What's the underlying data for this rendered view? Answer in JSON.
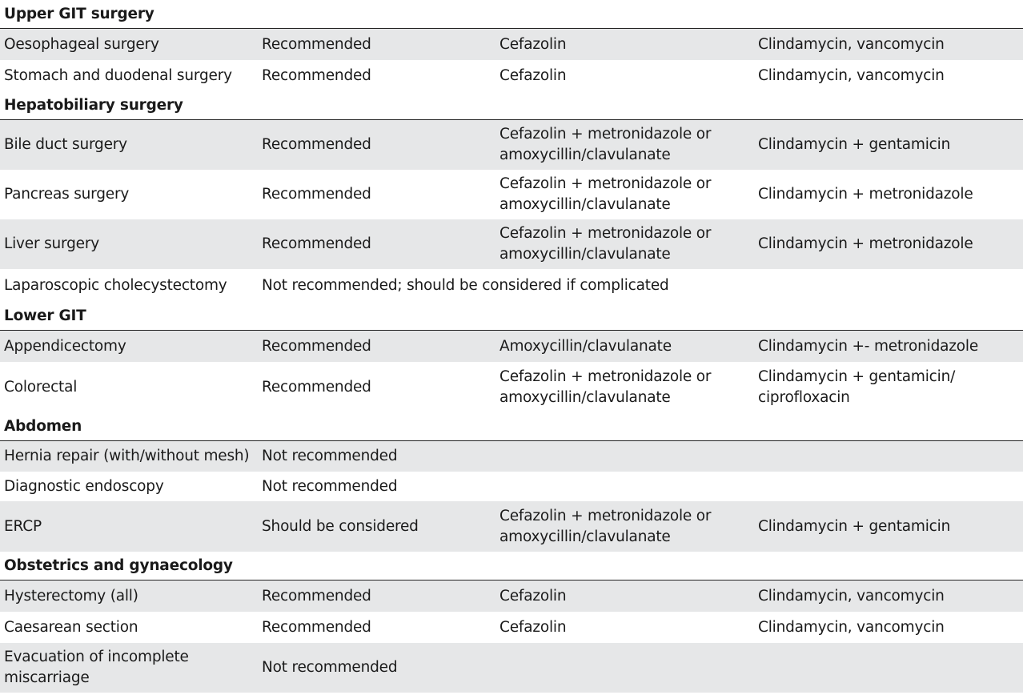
{
  "sections": [
    {
      "title": "Upper GIT surgery",
      "rows": [
        {
          "procedure": "Oesophageal surgery",
          "recommendation": "Recommended",
          "antibiotic": "Cefazolin",
          "alternative": "Clindamycin, vancomycin",
          "height": 39,
          "shade": true
        },
        {
          "procedure": "Stomach and duodenal surgery",
          "recommendation": "Recommended",
          "antibiotic": "Cefazolin",
          "alternative": "Clindamycin, vancomycin",
          "height": 39,
          "shade": false
        }
      ]
    },
    {
      "title": "Hepatobiliary surgery",
      "rows": [
        {
          "procedure": "Bile duct surgery",
          "recommendation": "Recommended",
          "antibiotic": "Cefazolin + metronidazole or amoxycillin/clavulanate",
          "alternative": "Clindamycin + gentamicin",
          "height": 62,
          "shade": true
        },
        {
          "procedure": "Pancreas surgery",
          "recommendation": "Recommended",
          "antibiotic": "Cefazolin + metronidazole or amoxycillin/clavulanate",
          "alternative": "Clindamycin + metronidazole",
          "height": 62,
          "shade": false
        },
        {
          "procedure": "Liver surgery",
          "recommendation": "Recommended",
          "antibiotic": "Cefazolin + metronidazole or amoxycillin/clavulanate",
          "alternative": "Clindamycin + metronidazole",
          "height": 62,
          "shade": true
        },
        {
          "procedure": "Laparoscopic cholecystectomy",
          "recommendation": "Not recommended; should be considered if complicated",
          "antibiotic": "",
          "alternative": "",
          "height": 41,
          "shade": false,
          "span": true
        }
      ]
    },
    {
      "title": "Lower GIT",
      "rows": [
        {
          "procedure": "Appendicectomy",
          "recommendation": "Recommended",
          "antibiotic": "Amoxycillin/clavulanate",
          "alternative": "Clindamycin +- metronidazole",
          "height": 39,
          "shade": true
        },
        {
          "procedure": "Colorectal",
          "recommendation": "Recommended",
          "antibiotic": "Cefazolin + metronidazole or amoxycillin/clavulanate",
          "alternative": "Clindamycin + gentamicin/ ciprofloxacin",
          "height": 63,
          "shade": false
        }
      ]
    },
    {
      "title": "Abdomen",
      "rows": [
        {
          "procedure": "Hernia repair (with/without mesh)",
          "recommendation": "Not recommended",
          "antibiotic": "",
          "alternative": "",
          "height": 38,
          "shade": true
        },
        {
          "procedure": "Diagnostic endoscopy",
          "recommendation": "Not recommended",
          "antibiotic": "",
          "alternative": "",
          "height": 37,
          "shade": false
        },
        {
          "procedure": "ERCP",
          "recommendation": "Should be considered",
          "antibiotic": "Cefazolin + metronidazole or amoxycillin/clavulanate",
          "alternative": "Clindamycin + gentamicin",
          "height": 63,
          "shade": true
        }
      ]
    },
    {
      "title": "Obstetrics and gynaecology",
      "rows": [
        {
          "procedure": "Hysterectomy (all)",
          "recommendation": "Recommended",
          "antibiotic": "Cefazolin",
          "alternative": "Clindamycin, vancomycin",
          "height": 39,
          "shade": true
        },
        {
          "procedure": "Caesarean section",
          "recommendation": "Recommended",
          "antibiotic": "Cefazolin",
          "alternative": "Clindamycin, vancomycin",
          "height": 39,
          "shade": false
        },
        {
          "procedure": "Evacuation of incomplete miscarriage",
          "recommendation": "Not recommended",
          "antibiotic": "",
          "alternative": "",
          "height": 62,
          "shade": true
        }
      ]
    }
  ]
}
